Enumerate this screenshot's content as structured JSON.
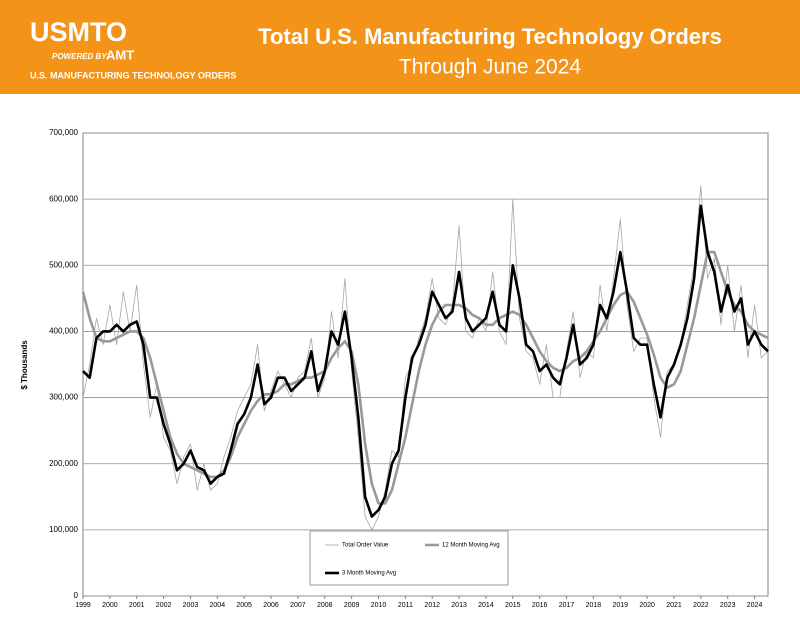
{
  "header": {
    "logo": "USMTO",
    "powered_by": "POWERED BY",
    "brand": "AMT",
    "program": "U.S. MANUFACTURING TECHNOLOGY ORDERS"
  },
  "chart_data": {
    "type": "line",
    "title": "Total U.S. Manufacturing Technology Orders",
    "subtitle": "Through June 2024",
    "y_label": "$ Thousands",
    "x": [
      1999,
      1999.25,
      1999.5,
      1999.75,
      2000,
      2000.25,
      2000.5,
      2000.75,
      2001,
      2001.25,
      2001.5,
      2001.75,
      2002,
      2002.25,
      2002.5,
      2002.75,
      2003,
      2003.25,
      2003.5,
      2003.75,
      2004,
      2004.25,
      2004.5,
      2004.75,
      2005,
      2005.25,
      2005.5,
      2005.75,
      2006,
      2006.25,
      2006.5,
      2006.75,
      2007,
      2007.25,
      2007.5,
      2007.75,
      2008,
      2008.25,
      2008.5,
      2008.75,
      2009,
      2009.25,
      2009.5,
      2009.75,
      2010,
      2010.25,
      2010.5,
      2010.75,
      2011,
      2011.25,
      2011.5,
      2011.75,
      2012,
      2012.25,
      2012.5,
      2012.75,
      2013,
      2013.25,
      2013.5,
      2013.75,
      2014,
      2014.25,
      2014.5,
      2014.75,
      2015,
      2015.25,
      2015.5,
      2015.75,
      2016,
      2016.25,
      2016.5,
      2016.75,
      2017,
      2017.25,
      2017.5,
      2017.75,
      2018,
      2018.25,
      2018.5,
      2018.75,
      2019,
      2019.25,
      2019.5,
      2019.75,
      2020,
      2020.25,
      2020.5,
      2020.75,
      2021,
      2021.25,
      2021.5,
      2021.75,
      2022,
      2022.25,
      2022.5,
      2022.75,
      2023,
      2023.25,
      2023.5,
      2023.75,
      2024,
      2024.25,
      2024.5
    ],
    "series": [
      {
        "name": "Total Order Value",
        "color": "#a6a6a6",
        "width": 0.8,
        "values": [
          300000,
          350000,
          420000,
          380000,
          440000,
          380000,
          460000,
          400000,
          470000,
          350000,
          270000,
          320000,
          240000,
          220000,
          170000,
          210000,
          230000,
          160000,
          200000,
          160000,
          170000,
          210000,
          240000,
          280000,
          300000,
          320000,
          380000,
          280000,
          310000,
          340000,
          320000,
          300000,
          330000,
          340000,
          390000,
          300000,
          330000,
          430000,
          360000,
          480000,
          340000,
          240000,
          120000,
          100000,
          120000,
          160000,
          220000,
          210000,
          330000,
          350000,
          390000,
          420000,
          480000,
          420000,
          410000,
          440000,
          560000,
          400000,
          390000,
          420000,
          400000,
          490000,
          400000,
          380000,
          600000,
          420000,
          370000,
          360000,
          320000,
          380000,
          300000,
          300000,
          370000,
          430000,
          330000,
          370000,
          360000,
          470000,
          400000,
          480000,
          570000,
          440000,
          370000,
          390000,
          390000,
          300000,
          240000,
          340000,
          350000,
          380000,
          440000,
          500000,
          620000,
          480000,
          510000,
          410000,
          500000,
          400000,
          470000,
          360000,
          440000,
          360000,
          370000
        ]
      },
      {
        "name": "12 Month Moving Avg",
        "color": "#999999",
        "width": 2.6,
        "values": [
          460000,
          420000,
          390000,
          385000,
          385000,
          390000,
          395000,
          400000,
          400000,
          390000,
          360000,
          320000,
          280000,
          240000,
          215000,
          200000,
          195000,
          190000,
          185000,
          180000,
          180000,
          190000,
          210000,
          240000,
          260000,
          280000,
          295000,
          305000,
          305000,
          310000,
          320000,
          320000,
          325000,
          330000,
          330000,
          335000,
          340000,
          360000,
          375000,
          385000,
          370000,
          320000,
          230000,
          170000,
          140000,
          140000,
          160000,
          200000,
          240000,
          290000,
          340000,
          380000,
          410000,
          430000,
          440000,
          440000,
          440000,
          435000,
          425000,
          420000,
          410000,
          410000,
          420000,
          425000,
          430000,
          425000,
          410000,
          390000,
          370000,
          355000,
          345000,
          340000,
          345000,
          355000,
          360000,
          370000,
          385000,
          400000,
          420000,
          440000,
          455000,
          460000,
          445000,
          420000,
          395000,
          365000,
          330000,
          315000,
          320000,
          340000,
          380000,
          420000,
          470000,
          520000,
          520000,
          490000,
          460000,
          440000,
          430000,
          410000,
          400000,
          395000,
          390000
        ]
      },
      {
        "name": "3 Month Moving Avg",
        "color": "#000000",
        "width": 2.6,
        "values": [
          340000,
          330000,
          390000,
          400000,
          400000,
          410000,
          400000,
          410000,
          415000,
          380000,
          300000,
          300000,
          260000,
          230000,
          190000,
          200000,
          220000,
          195000,
          190000,
          170000,
          180000,
          185000,
          220000,
          260000,
          275000,
          300000,
          350000,
          290000,
          300000,
          330000,
          330000,
          310000,
          320000,
          330000,
          370000,
          310000,
          340000,
          400000,
          380000,
          430000,
          360000,
          270000,
          150000,
          120000,
          130000,
          150000,
          200000,
          220000,
          300000,
          360000,
          380000,
          410000,
          460000,
          440000,
          420000,
          430000,
          490000,
          420000,
          400000,
          410000,
          420000,
          460000,
          410000,
          400000,
          500000,
          450000,
          380000,
          370000,
          340000,
          350000,
          330000,
          320000,
          360000,
          410000,
          350000,
          360000,
          380000,
          440000,
          420000,
          460000,
          520000,
          460000,
          390000,
          380000,
          380000,
          320000,
          270000,
          330000,
          350000,
          380000,
          420000,
          480000,
          590000,
          520000,
          490000,
          430000,
          470000,
          430000,
          450000,
          380000,
          400000,
          380000,
          370000
        ]
      }
    ],
    "xlim": [
      1999,
      2024.5
    ],
    "xticks": [
      1999,
      2000,
      2001,
      2002,
      2003,
      2004,
      2005,
      2006,
      2007,
      2008,
      2009,
      2010,
      2011,
      2012,
      2013,
      2014,
      2015,
      2016,
      2017,
      2018,
      2019,
      2020,
      2021,
      2022,
      2023,
      2024
    ],
    "ylim": [
      0,
      700000
    ],
    "yticks": [
      0,
      {
        "value": 100000,
        "label": "100,000"
      },
      {
        "value": 200000,
        "label": "200,000"
      },
      {
        "value": 300000,
        "label": "300,000"
      },
      {
        "value": 400000,
        "label": "400,000"
      },
      {
        "value": 500000,
        "label": "500,000"
      },
      {
        "value": 600000,
        "label": "600,000"
      },
      {
        "value": 700000,
        "label": "700,000"
      }
    ],
    "grid": true
  }
}
